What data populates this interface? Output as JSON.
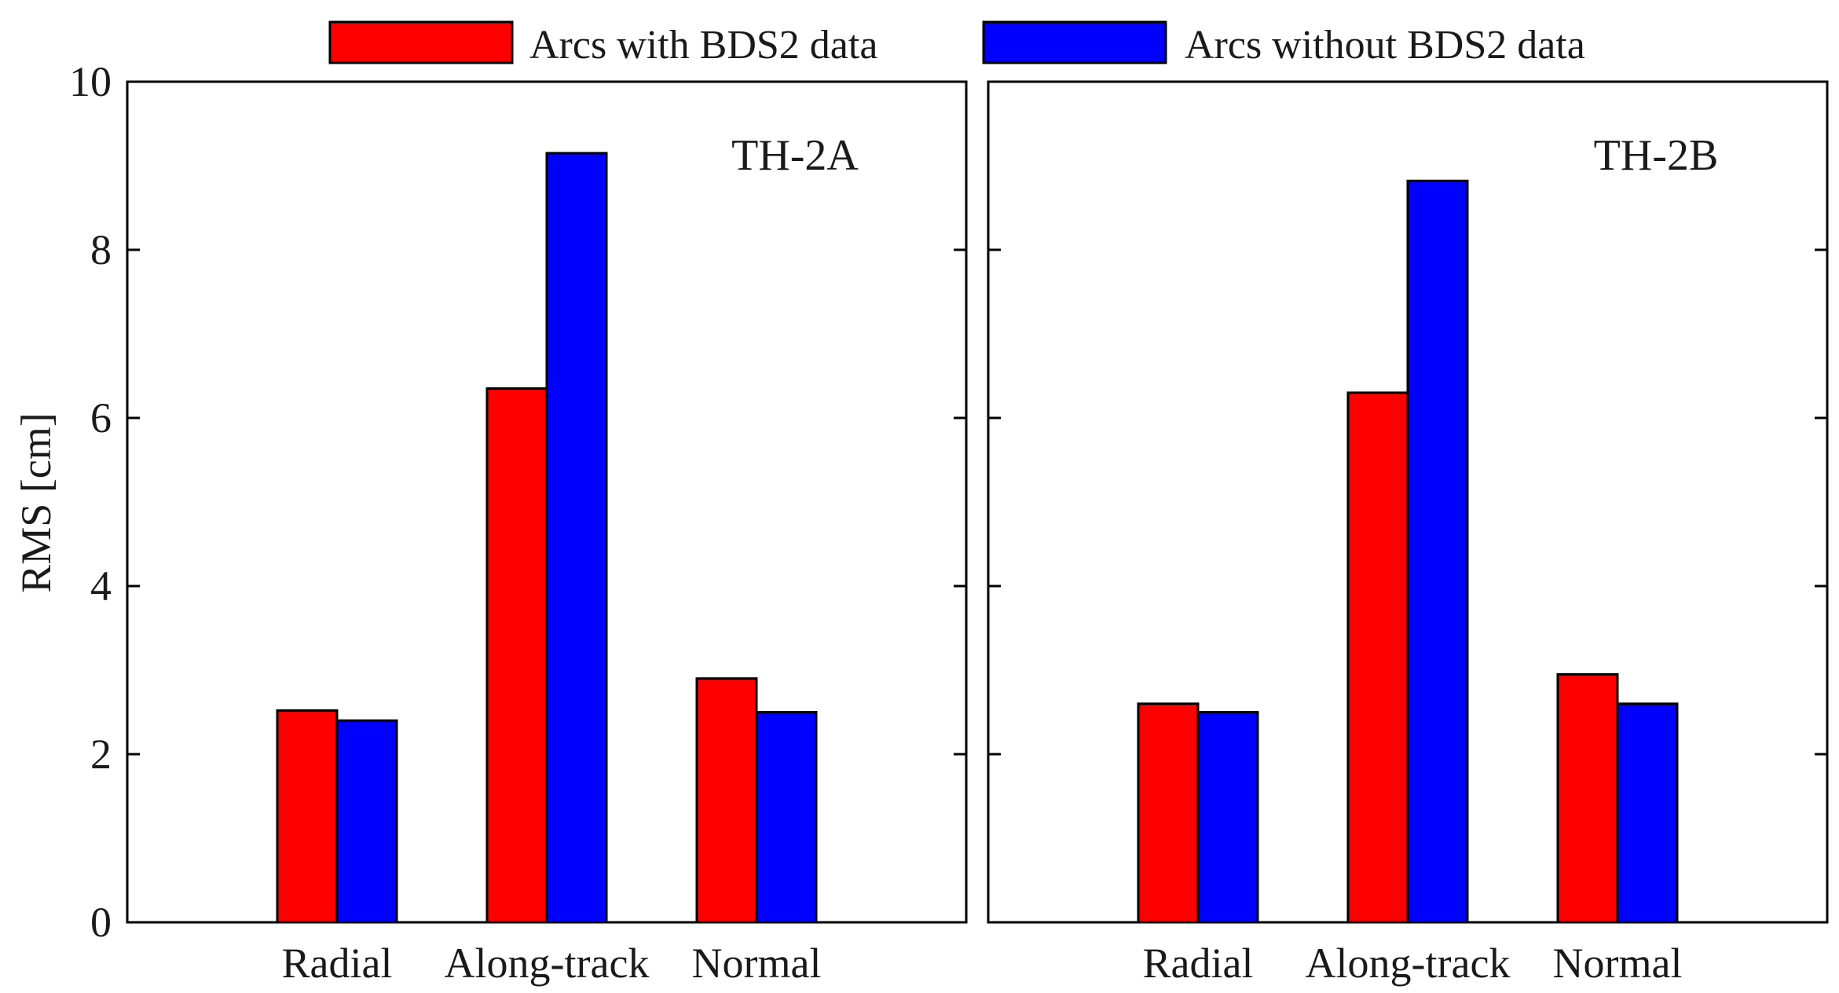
{
  "legend": [
    {
      "label": "Arcs with BDS2 data",
      "color": "#ff0000"
    },
    {
      "label": "Arcs without BDS2 data",
      "color": "#0000ff"
    }
  ],
  "ylabel": "RMS [cm]",
  "chart_data": [
    {
      "type": "bar",
      "title": "TH-2A",
      "categories": [
        "Radial",
        "Along-track",
        "Normal"
      ],
      "series": [
        {
          "name": "Arcs with BDS2 data",
          "color": "#ff0000",
          "values": [
            2.52,
            6.35,
            2.9
          ]
        },
        {
          "name": "Arcs without BDS2 data",
          "color": "#0000ff",
          "values": [
            2.4,
            9.15,
            2.5
          ]
        }
      ],
      "ylabel": "RMS [cm]",
      "ylim": [
        0,
        10
      ],
      "yticks": [
        0,
        2,
        4,
        6,
        8,
        10
      ]
    },
    {
      "type": "bar",
      "title": "TH-2B",
      "categories": [
        "Radial",
        "Along-track",
        "Normal"
      ],
      "series": [
        {
          "name": "Arcs with BDS2 data",
          "color": "#ff0000",
          "values": [
            2.6,
            6.3,
            2.95
          ]
        },
        {
          "name": "Arcs without BDS2 data",
          "color": "#0000ff",
          "values": [
            2.5,
            8.82,
            2.6
          ]
        }
      ],
      "ylabel": "",
      "ylim": [
        0,
        10
      ],
      "yticks": []
    }
  ]
}
